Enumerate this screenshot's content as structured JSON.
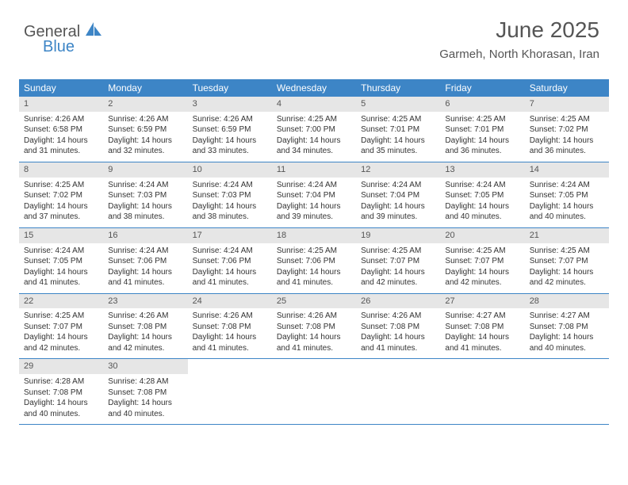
{
  "logo": {
    "part1": "General",
    "part2": "Blue"
  },
  "header": {
    "month_title": "June 2025",
    "location": "Garmeh, North Khorasan, Iran"
  },
  "colors": {
    "brand_blue": "#3d85c6",
    "gray_text": "#555555",
    "light_gray": "#e6e6e6",
    "white": "#ffffff"
  },
  "day_names": [
    "Sunday",
    "Monday",
    "Tuesday",
    "Wednesday",
    "Thursday",
    "Friday",
    "Saturday"
  ],
  "weeks": [
    [
      {
        "n": "1",
        "sr": "4:26 AM",
        "ss": "6:58 PM",
        "dl": "14 hours and 31 minutes."
      },
      {
        "n": "2",
        "sr": "4:26 AM",
        "ss": "6:59 PM",
        "dl": "14 hours and 32 minutes."
      },
      {
        "n": "3",
        "sr": "4:26 AM",
        "ss": "6:59 PM",
        "dl": "14 hours and 33 minutes."
      },
      {
        "n": "4",
        "sr": "4:25 AM",
        "ss": "7:00 PM",
        "dl": "14 hours and 34 minutes."
      },
      {
        "n": "5",
        "sr": "4:25 AM",
        "ss": "7:01 PM",
        "dl": "14 hours and 35 minutes."
      },
      {
        "n": "6",
        "sr": "4:25 AM",
        "ss": "7:01 PM",
        "dl": "14 hours and 36 minutes."
      },
      {
        "n": "7",
        "sr": "4:25 AM",
        "ss": "7:02 PM",
        "dl": "14 hours and 36 minutes."
      }
    ],
    [
      {
        "n": "8",
        "sr": "4:25 AM",
        "ss": "7:02 PM",
        "dl": "14 hours and 37 minutes."
      },
      {
        "n": "9",
        "sr": "4:24 AM",
        "ss": "7:03 PM",
        "dl": "14 hours and 38 minutes."
      },
      {
        "n": "10",
        "sr": "4:24 AM",
        "ss": "7:03 PM",
        "dl": "14 hours and 38 minutes."
      },
      {
        "n": "11",
        "sr": "4:24 AM",
        "ss": "7:04 PM",
        "dl": "14 hours and 39 minutes."
      },
      {
        "n": "12",
        "sr": "4:24 AM",
        "ss": "7:04 PM",
        "dl": "14 hours and 39 minutes."
      },
      {
        "n": "13",
        "sr": "4:24 AM",
        "ss": "7:05 PM",
        "dl": "14 hours and 40 minutes."
      },
      {
        "n": "14",
        "sr": "4:24 AM",
        "ss": "7:05 PM",
        "dl": "14 hours and 40 minutes."
      }
    ],
    [
      {
        "n": "15",
        "sr": "4:24 AM",
        "ss": "7:05 PM",
        "dl": "14 hours and 41 minutes."
      },
      {
        "n": "16",
        "sr": "4:24 AM",
        "ss": "7:06 PM",
        "dl": "14 hours and 41 minutes."
      },
      {
        "n": "17",
        "sr": "4:24 AM",
        "ss": "7:06 PM",
        "dl": "14 hours and 41 minutes."
      },
      {
        "n": "18",
        "sr": "4:25 AM",
        "ss": "7:06 PM",
        "dl": "14 hours and 41 minutes."
      },
      {
        "n": "19",
        "sr": "4:25 AM",
        "ss": "7:07 PM",
        "dl": "14 hours and 42 minutes."
      },
      {
        "n": "20",
        "sr": "4:25 AM",
        "ss": "7:07 PM",
        "dl": "14 hours and 42 minutes."
      },
      {
        "n": "21",
        "sr": "4:25 AM",
        "ss": "7:07 PM",
        "dl": "14 hours and 42 minutes."
      }
    ],
    [
      {
        "n": "22",
        "sr": "4:25 AM",
        "ss": "7:07 PM",
        "dl": "14 hours and 42 minutes."
      },
      {
        "n": "23",
        "sr": "4:26 AM",
        "ss": "7:08 PM",
        "dl": "14 hours and 42 minutes."
      },
      {
        "n": "24",
        "sr": "4:26 AM",
        "ss": "7:08 PM",
        "dl": "14 hours and 41 minutes."
      },
      {
        "n": "25",
        "sr": "4:26 AM",
        "ss": "7:08 PM",
        "dl": "14 hours and 41 minutes."
      },
      {
        "n": "26",
        "sr": "4:26 AM",
        "ss": "7:08 PM",
        "dl": "14 hours and 41 minutes."
      },
      {
        "n": "27",
        "sr": "4:27 AM",
        "ss": "7:08 PM",
        "dl": "14 hours and 41 minutes."
      },
      {
        "n": "28",
        "sr": "4:27 AM",
        "ss": "7:08 PM",
        "dl": "14 hours and 40 minutes."
      }
    ],
    [
      {
        "n": "29",
        "sr": "4:28 AM",
        "ss": "7:08 PM",
        "dl": "14 hours and 40 minutes."
      },
      {
        "n": "30",
        "sr": "4:28 AM",
        "ss": "7:08 PM",
        "dl": "14 hours and 40 minutes."
      },
      null,
      null,
      null,
      null,
      null
    ]
  ],
  "labels": {
    "sunrise": "Sunrise:",
    "sunset": "Sunset:",
    "daylight": "Daylight:"
  }
}
